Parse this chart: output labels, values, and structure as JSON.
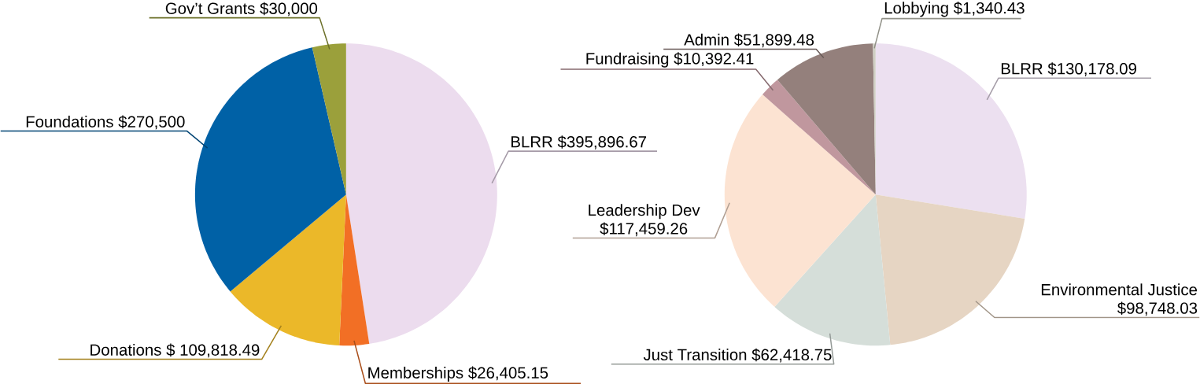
{
  "chart_data": [
    {
      "type": "pie",
      "categories": [
        "BLRR",
        "Memberships",
        "Donations",
        "Foundations",
        "Gov’t Grants"
      ],
      "values": [
        395896.67,
        26405.15,
        109818.49,
        270500,
        30000
      ],
      "value_labels": [
        "$395,896.67",
        "$26,405.15",
        "$ 109,818.49",
        "$270,500",
        "$30,000"
      ],
      "colors": [
        "#ecdcee",
        "#f26f25",
        "#ebb829",
        "#0061a6",
        "#9ba03b"
      ]
    },
    {
      "type": "pie",
      "categories": [
        "BLRR",
        "Environmental Justice",
        "Just Transition",
        "Leadership Dev",
        "Fundraising",
        "Admin",
        "Lobbying"
      ],
      "values": [
        130178.09,
        98748.03,
        62418.75,
        117459.26,
        10392.41,
        51899.48,
        1340.43
      ],
      "value_labels": [
        "$130,178.09",
        "$98,748.03",
        "$62,418.75",
        "$117,459.26",
        "$10,392.41",
        "$51,899.48",
        "$1,340.43"
      ],
      "colors": [
        "#ece0f0",
        "#e6d5c3",
        "#d5ded9",
        "#fce3d2",
        "#c0979e",
        "#94807c",
        "#cfcfc3"
      ]
    }
  ]
}
